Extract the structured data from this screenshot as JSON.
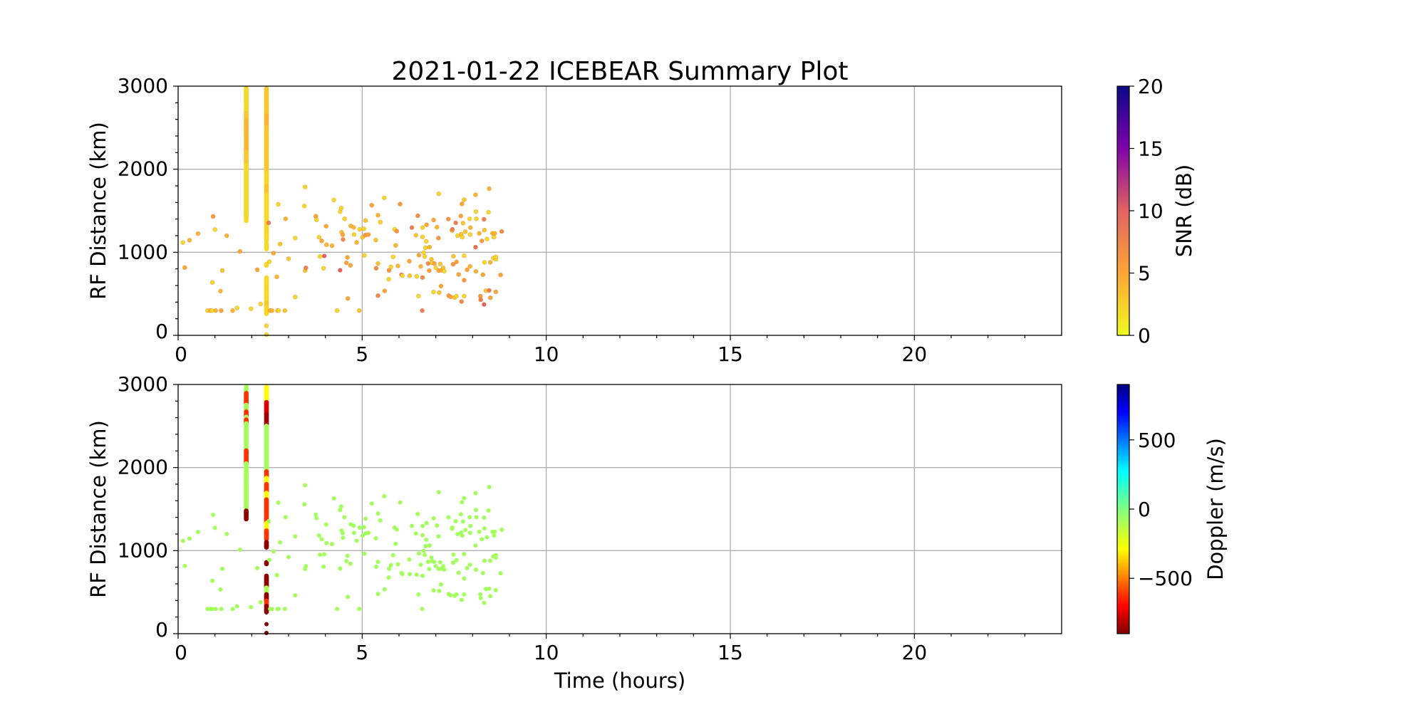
{
  "chart_data": {
    "type": "scatter",
    "title": "2021-01-22 ICEBEAR Summary Plot",
    "xlabel": "Time (hours)",
    "xlim": [
      0,
      24
    ],
    "x_ticks": [
      0,
      5,
      10,
      15,
      20
    ],
    "grid": true,
    "panels": [
      {
        "ylabel": "RF Distance (km)",
        "ylim": [
          0,
          3000
        ],
        "y_ticks": [
          0,
          1000,
          2000,
          3000
        ],
        "color_by": "snr",
        "colorbar": {
          "label": "SNR (dB)",
          "range": [
            0,
            20
          ],
          "ticks": [
            0,
            5,
            10,
            15,
            20
          ],
          "ticklabels": [
            "0",
            "5",
            "10",
            "15",
            "20"
          ],
          "colormap": "plasma_r"
        }
      },
      {
        "ylabel": "RF Distance (km)",
        "ylim": [
          0,
          3000
        ],
        "y_ticks": [
          0,
          1000,
          2000,
          3000
        ],
        "color_by": "doppler",
        "colorbar": {
          "label": "Doppler (m/s)",
          "range": [
            -900,
            900
          ],
          "ticks": [
            -500,
            0,
            500
          ],
          "ticklabels": [
            "−500",
            "0",
            "500"
          ],
          "colormap": "jet_r"
        }
      }
    ],
    "point_fields": [
      "time_hours",
      "rf_distance_km",
      "snr_db",
      "doppler_ms"
    ],
    "points": [
      [
        0.13,
        1117,
        2,
        -80
      ],
      [
        0.31,
        1145,
        4,
        -80
      ],
      [
        0.54,
        1225,
        4,
        -80
      ],
      [
        0.18,
        816,
        5,
        -80
      ],
      [
        0.95,
        1431,
        6,
        -80
      ],
      [
        1.0,
        1274,
        2,
        -80
      ],
      [
        1.32,
        1200,
        4,
        -80
      ],
      [
        1.2,
        781,
        3,
        -80
      ],
      [
        0.93,
        636,
        2,
        -80
      ],
      [
        1.15,
        532,
        4,
        -80
      ],
      [
        1.68,
        1010,
        5,
        -80
      ],
      [
        0.8,
        298,
        2,
        -80
      ],
      [
        0.87,
        298,
        4,
        -80
      ],
      [
        0.92,
        298,
        2,
        -80
      ],
      [
        1.02,
        298,
        4,
        -80
      ],
      [
        1.17,
        298,
        5,
        -80
      ],
      [
        1.48,
        298,
        4,
        -80
      ],
      [
        1.6,
        330,
        2,
        -80
      ],
      [
        1.98,
        320,
        2,
        -80
      ],
      [
        2.24,
        378,
        2,
        -80
      ],
      [
        2.15,
        790,
        5,
        -80
      ],
      [
        2.46,
        1354,
        8,
        -80
      ],
      [
        2.48,
        887,
        2,
        -80
      ],
      [
        2.59,
        990,
        5,
        -80
      ],
      [
        2.68,
        704,
        4,
        -80
      ],
      [
        2.72,
        1577,
        2,
        -80
      ],
      [
        2.77,
        1099,
        3,
        -80
      ],
      [
        2.5,
        298,
        4,
        -80
      ],
      [
        2.55,
        298,
        4,
        -80
      ],
      [
        2.7,
        298,
        3,
        -80
      ],
      [
        2.73,
        298,
        2,
        -80
      ],
      [
        2.9,
        298,
        3,
        -80
      ],
      [
        2.92,
        1403,
        4,
        -80
      ],
      [
        3.0,
        922,
        3,
        -80
      ],
      [
        3.18,
        1171,
        2,
        -80
      ],
      [
        3.18,
        461,
        2,
        -80
      ],
      [
        3.43,
        1557,
        2,
        -80
      ],
      [
        3.45,
        1786,
        2,
        -80
      ],
      [
        3.45,
        779,
        3,
        -80
      ],
      [
        3.47,
        813,
        8,
        -80
      ],
      [
        3.74,
        1434,
        5,
        -80
      ],
      [
        3.76,
        1391,
        2,
        -80
      ],
      [
        3.83,
        1182,
        2,
        -80
      ],
      [
        3.9,
        1137,
        5,
        -80
      ],
      [
        3.85,
        950,
        2,
        -80
      ],
      [
        3.97,
        956,
        10,
        -80
      ],
      [
        3.95,
        807,
        2,
        -80
      ],
      [
        4.03,
        1091,
        4,
        -80
      ],
      [
        4.02,
        1314,
        5,
        -80
      ],
      [
        4.18,
        1079,
        4,
        -80
      ],
      [
        4.23,
        1629,
        2,
        -80
      ],
      [
        4.32,
        298,
        2,
        -80
      ],
      [
        4.4,
        784,
        10,
        -80
      ],
      [
        4.4,
        1489,
        2,
        -80
      ],
      [
        4.43,
        1532,
        2,
        -80
      ],
      [
        4.44,
        1242,
        3,
        -80
      ],
      [
        4.47,
        1211,
        5,
        -80
      ],
      [
        4.48,
        1154,
        7,
        -80
      ],
      [
        4.52,
        1403,
        2,
        -80
      ],
      [
        4.57,
        873,
        5,
        -80
      ],
      [
        4.6,
        939,
        5,
        -80
      ],
      [
        4.61,
        444,
        5,
        -80
      ],
      [
        4.68,
        842,
        5,
        -80
      ],
      [
        4.69,
        1317,
        4,
        -80
      ],
      [
        4.77,
        1300,
        4,
        -80
      ],
      [
        4.78,
        1214,
        2,
        -80
      ],
      [
        4.85,
        1119,
        4,
        -80
      ],
      [
        4.92,
        298,
        3,
        -80
      ],
      [
        4.93,
        1277,
        2,
        -80
      ],
      [
        5.01,
        1180,
        3,
        -80
      ],
      [
        5.05,
        1283,
        2,
        -80
      ],
      [
        5.06,
        962,
        2,
        -80
      ],
      [
        5.09,
        1383,
        3,
        -80
      ],
      [
        5.09,
        1208,
        6,
        -80
      ],
      [
        5.17,
        1214,
        5,
        -80
      ],
      [
        5.26,
        1566,
        5,
        -80
      ],
      [
        5.37,
        1148,
        3,
        -80
      ],
      [
        5.38,
        807,
        7,
        -80
      ],
      [
        5.43,
        1446,
        4,
        -80
      ],
      [
        5.43,
        865,
        3,
        -80
      ],
      [
        5.43,
        478,
        7,
        -80
      ],
      [
        5.49,
        1363,
        2,
        -80
      ],
      [
        5.6,
        1655,
        2,
        -80
      ],
      [
        5.61,
        535,
        5,
        -80
      ],
      [
        5.72,
        676,
        2,
        -80
      ],
      [
        5.73,
        782,
        6,
        -80
      ],
      [
        5.78,
        825,
        2,
        -80
      ],
      [
        5.84,
        945,
        2,
        -80
      ],
      [
        5.88,
        1277,
        2,
        -80
      ],
      [
        5.91,
        1082,
        4,
        -80
      ],
      [
        5.94,
        1254,
        6,
        -80
      ],
      [
        5.97,
        836,
        4,
        -80
      ],
      [
        6.03,
        1580,
        6,
        -80
      ],
      [
        6.07,
        730,
        8,
        -80
      ],
      [
        6.09,
        718,
        2,
        -80
      ],
      [
        6.28,
        893,
        5,
        -80
      ],
      [
        6.29,
        718,
        3,
        -80
      ],
      [
        6.35,
        1297,
        8,
        -80
      ],
      [
        6.46,
        1205,
        3,
        -80
      ],
      [
        6.48,
        710,
        2,
        -80
      ],
      [
        6.51,
        1440,
        7,
        -80
      ],
      [
        6.53,
        472,
        2,
        -80
      ],
      [
        6.54,
        965,
        5,
        -80
      ],
      [
        6.59,
        830,
        4,
        -80
      ],
      [
        6.64,
        1297,
        2,
        -80
      ],
      [
        6.63,
        298,
        8,
        -80
      ],
      [
        6.64,
        1185,
        2,
        -80
      ],
      [
        6.64,
        696,
        7,
        -80
      ],
      [
        6.67,
        996,
        2,
        -80
      ],
      [
        6.7,
        948,
        2,
        -80
      ],
      [
        6.72,
        1054,
        2,
        -80
      ],
      [
        6.74,
        1131,
        2,
        -80
      ],
      [
        6.75,
        1331,
        5,
        -80
      ],
      [
        6.79,
        865,
        7,
        -80
      ],
      [
        6.82,
        779,
        5,
        -80
      ],
      [
        6.83,
        1062,
        4,
        -80
      ],
      [
        6.88,
        916,
        3,
        -80
      ],
      [
        6.9,
        873,
        2,
        -80
      ],
      [
        6.94,
        1389,
        5,
        -80
      ],
      [
        6.94,
        521,
        2,
        -80
      ],
      [
        6.96,
        865,
        5,
        -80
      ],
      [
        7.0,
        813,
        2,
        -80
      ],
      [
        7.03,
        1303,
        4,
        -80
      ],
      [
        7.07,
        1171,
        6,
        -80
      ],
      [
        7.08,
        1704,
        2,
        -80
      ],
      [
        7.08,
        779,
        5,
        -80
      ],
      [
        7.09,
        515,
        3,
        -80
      ],
      [
        7.12,
        859,
        3,
        -80
      ],
      [
        7.14,
        593,
        5,
        -80
      ],
      [
        7.16,
        784,
        5,
        -80
      ],
      [
        7.2,
        813,
        3,
        -80
      ],
      [
        7.23,
        773,
        2,
        -80
      ],
      [
        7.34,
        1400,
        6,
        -80
      ],
      [
        7.35,
        478,
        6,
        -80
      ],
      [
        7.4,
        464,
        5,
        -80
      ],
      [
        7.44,
        1263,
        4,
        -80
      ],
      [
        7.45,
        1277,
        8,
        -80
      ],
      [
        7.47,
        856,
        6,
        -80
      ],
      [
        7.48,
        953,
        3,
        -80
      ],
      [
        7.51,
        455,
        3,
        -80
      ],
      [
        7.54,
        1354,
        8,
        -80
      ],
      [
        7.56,
        884,
        5,
        -80
      ],
      [
        7.56,
        472,
        2,
        -80
      ],
      [
        7.59,
        1200,
        2,
        -80
      ],
      [
        7.62,
        733,
        5,
        -80
      ],
      [
        7.68,
        1437,
        5,
        -80
      ],
      [
        7.69,
        1217,
        3,
        -80
      ],
      [
        7.7,
        407,
        7,
        -80
      ],
      [
        7.71,
        1583,
        5,
        -80
      ],
      [
        7.72,
        1182,
        2,
        -80
      ],
      [
        7.74,
        1351,
        3,
        -80
      ],
      [
        7.77,
        1632,
        3,
        -80
      ],
      [
        7.77,
        959,
        2,
        -80
      ],
      [
        7.77,
        664,
        6,
        -80
      ],
      [
        7.77,
        472,
        2,
        -80
      ],
      [
        7.8,
        1248,
        3,
        -80
      ],
      [
        7.85,
        790,
        5,
        -80
      ],
      [
        7.92,
        1403,
        2,
        -80
      ],
      [
        7.93,
        830,
        4,
        -80
      ],
      [
        7.93,
        1214,
        2,
        -80
      ],
      [
        7.94,
        1297,
        4,
        -80
      ],
      [
        8.08,
        1692,
        4,
        -80
      ],
      [
        8.08,
        1062,
        9,
        -80
      ],
      [
        8.09,
        1489,
        2,
        -80
      ],
      [
        8.1,
        1403,
        2,
        -80
      ],
      [
        8.09,
        770,
        4,
        -80
      ],
      [
        8.18,
        1228,
        4,
        -80
      ],
      [
        8.21,
        472,
        6,
        -80
      ],
      [
        8.22,
        429,
        8,
        -80
      ],
      [
        8.25,
        1137,
        6,
        -80
      ],
      [
        8.28,
        730,
        5,
        -80
      ],
      [
        8.31,
        1397,
        8,
        -80
      ],
      [
        8.32,
        1268,
        3,
        -80
      ],
      [
        8.31,
        372,
        10,
        -80
      ],
      [
        8.32,
        879,
        2,
        -80
      ],
      [
        8.36,
        538,
        3,
        -80
      ],
      [
        8.39,
        1160,
        2,
        -80
      ],
      [
        8.43,
        1483,
        2,
        -80
      ],
      [
        8.45,
        541,
        8,
        -80
      ],
      [
        8.45,
        1766,
        4,
        -80
      ],
      [
        8.48,
        879,
        4,
        -80
      ],
      [
        8.48,
        452,
        5,
        -80
      ],
      [
        8.54,
        1228,
        4,
        -80
      ],
      [
        8.56,
        930,
        2,
        -80
      ],
      [
        8.58,
        1182,
        2,
        -80
      ],
      [
        8.6,
        1228,
        4,
        -80
      ],
      [
        8.63,
        916,
        2,
        -80
      ],
      [
        8.63,
        945,
        2,
        -80
      ],
      [
        8.63,
        524,
        5,
        -80
      ],
      [
        8.76,
        727,
        5,
        -80
      ],
      [
        8.79,
        1251,
        7,
        -80
      ],
      [
        2.4,
        115,
        2,
        -900
      ],
      [
        2.4,
        9,
        2,
        -900
      ]
    ],
    "segment_fields": [
      "range_start_km",
      "range_end_km",
      "snr_db",
      "doppler_ms"
    ],
    "streaks": [
      {
        "time_hours": 1.85,
        "segments": [
          [
            2900,
            2975,
            2,
            -80
          ],
          [
            2760,
            2900,
            2,
            -620
          ],
          [
            2680,
            2760,
            2,
            -80
          ],
          [
            2610,
            2680,
            3,
            -620
          ],
          [
            2580,
            2610,
            3,
            -80
          ],
          [
            2530,
            2580,
            4,
            -620
          ],
          [
            2205,
            2530,
            4,
            -80
          ],
          [
            2050,
            2205,
            3,
            -620
          ],
          [
            1480,
            2050,
            2,
            -80
          ],
          [
            1380,
            1480,
            2,
            -880
          ]
        ]
      },
      {
        "time_hours": 2.4,
        "segments": [
          [
            2790,
            2975,
            3,
            -280
          ],
          [
            2650,
            2790,
            3,
            -760
          ],
          [
            2500,
            2650,
            4,
            -850
          ],
          [
            1960,
            2500,
            3,
            -80
          ],
          [
            1880,
            1960,
            2,
            -620
          ],
          [
            1800,
            1880,
            2,
            -280
          ],
          [
            1700,
            1800,
            3,
            -620
          ],
          [
            1620,
            1700,
            2,
            -280
          ],
          [
            1335,
            1620,
            2,
            -620
          ],
          [
            1240,
            1335,
            2,
            -280
          ],
          [
            1140,
            1240,
            2,
            -620
          ],
          [
            1040,
            1110,
            2,
            -880
          ],
          [
            840,
            860,
            2,
            -880
          ],
          [
            560,
            700,
            2,
            -880
          ],
          [
            480,
            560,
            2,
            -100
          ],
          [
            400,
            480,
            2,
            -880
          ],
          [
            340,
            400,
            3,
            -620
          ],
          [
            260,
            340,
            2,
            -880
          ]
        ]
      }
    ]
  }
}
